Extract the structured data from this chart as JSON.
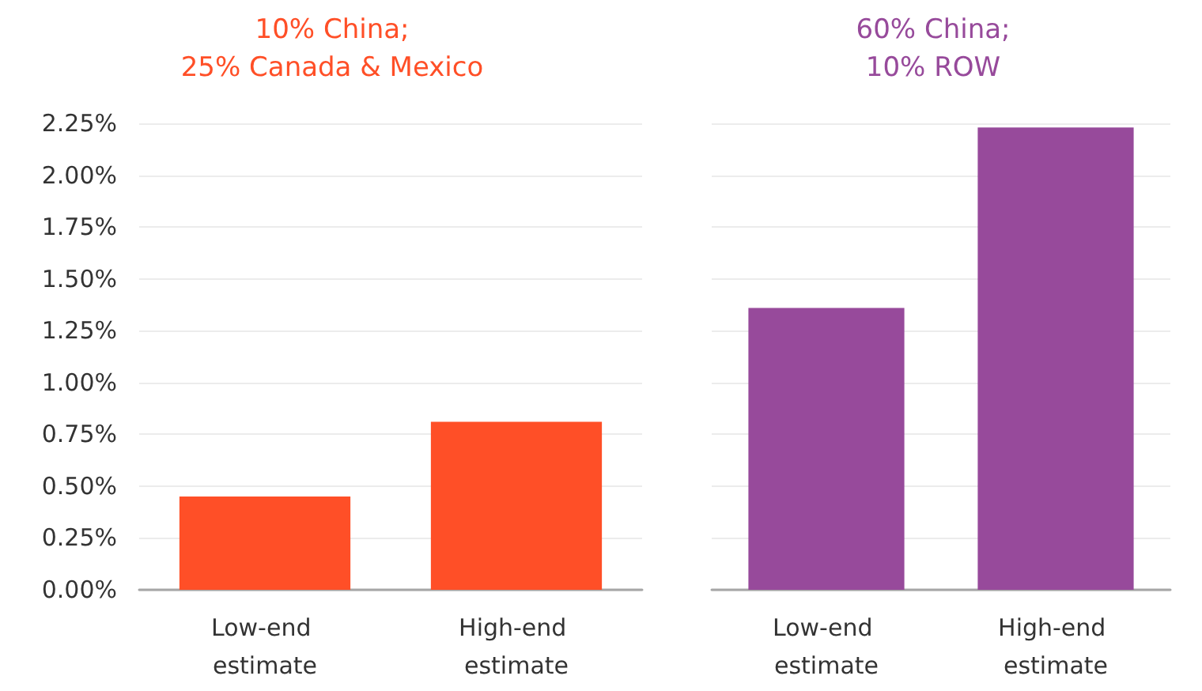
{
  "chart_data": [
    {
      "type": "bar",
      "title": "10% China;\n25% Canada & Mexico",
      "categories": [
        "Low-end estimate",
        "High-end estimate"
      ],
      "values": [
        0.45,
        0.81
      ],
      "color": "#ff4f27",
      "ylim": [
        0,
        2.25
      ],
      "yticks": [
        {
          "value": 0,
          "label": "0.00%"
        },
        {
          "value": 0.25,
          "label": "0.25%"
        },
        {
          "value": 0.5,
          "label": "0.50%"
        },
        {
          "value": 0.75,
          "label": "0.75%"
        },
        {
          "value": 1,
          "label": "1.00%"
        },
        {
          "value": 1.25,
          "label": "1.25%"
        },
        {
          "value": 1.5,
          "label": "1.50%"
        },
        {
          "value": 1.75,
          "label": "1.75%"
        },
        {
          "value": 2,
          "label": "2.00%"
        },
        {
          "value": 2.25,
          "label": "2.25%"
        }
      ],
      "grid": "y"
    },
    {
      "type": "bar",
      "title": "60% China;\n10% ROW",
      "categories": [
        "Low-end estimate",
        "High-end estimate"
      ],
      "values": [
        1.36,
        2.23
      ],
      "color": "#974a9b",
      "ylim": [
        0,
        2.25
      ],
      "yticks": [
        0,
        0.25,
        0.5,
        0.75,
        1,
        1.25,
        1.5,
        1.75,
        2,
        2.25
      ],
      "grid": "y",
      "tick_labels": "x"
    }
  ]
}
